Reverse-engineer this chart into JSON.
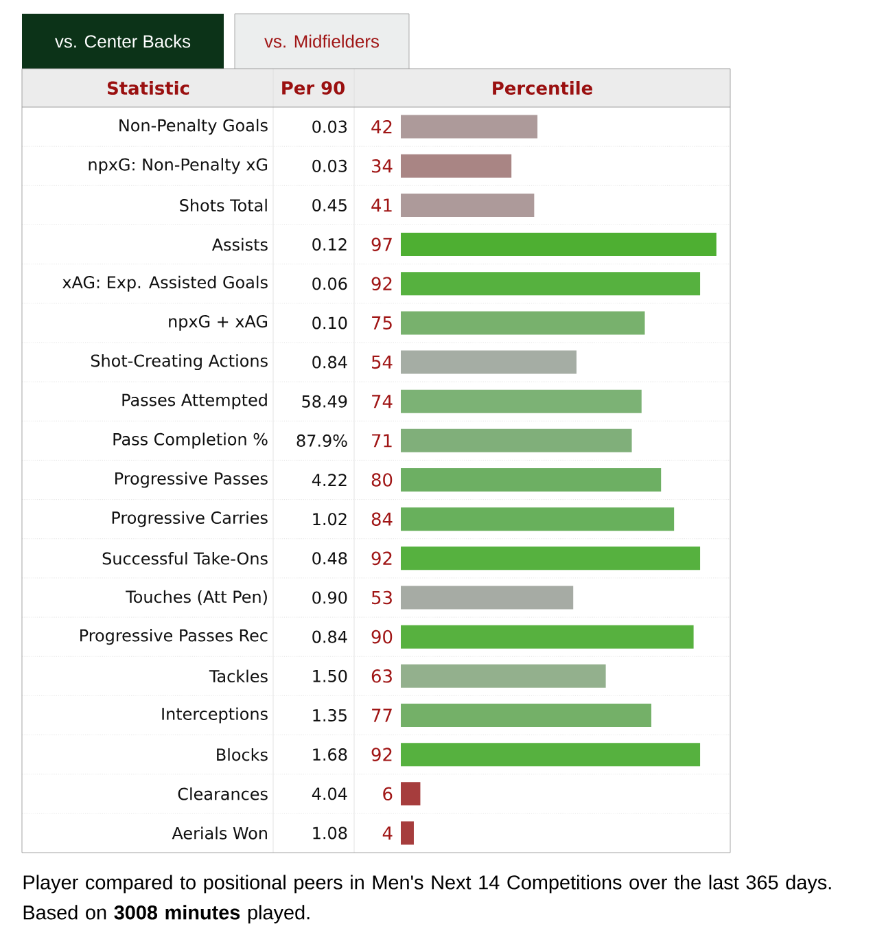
{
  "chart_data": {
    "type": "bar",
    "orientation": "horizontal",
    "ylabel": "Statistic",
    "xlabel": "Percentile",
    "categories": [
      "Non-Penalty Goals",
      "npxG: Non-Penalty xG",
      "Shots Total",
      "Assists",
      "xAG: Exp. Assisted Goals",
      "npxG + xAG",
      "Shot-Creating Actions",
      "Passes Attempted",
      "Pass Completion %",
      "Progressive Passes",
      "Progressive Carries",
      "Successful Take-Ons",
      "Touches (Att Pen)",
      "Progressive Passes Rec",
      "Tackles",
      "Interceptions",
      "Blocks",
      "Clearances",
      "Aerials Won"
    ],
    "values": [
      42,
      34,
      41,
      97,
      92,
      75,
      54,
      74,
      71,
      80,
      84,
      92,
      53,
      90,
      63,
      77,
      92,
      6,
      4
    ],
    "colors": [
      "#ad9a9a",
      "#a98584",
      "#ad9a9a",
      "#4eaf32",
      "#56b13f",
      "#78b16d",
      "#a5ada4",
      "#7cb275",
      "#80af7a",
      "#6daf63",
      "#68b05c",
      "#56b13f",
      "#a6aba4",
      "#57b13f",
      "#93b08d",
      "#74b068",
      "#56b13f",
      "#a63d3d",
      "#a63d3d"
    ],
    "xlim": [
      0,
      100
    ],
    "data_labels": true,
    "grid": "y",
    "annotations": [
      "vs. Center Backs",
      "vs. Midfielders",
      "Per 90",
      "Player compared to positional peers in Men's Next 14 Competitions over the last 365 days. Based on **3008 minutes** played.",
      "0.03",
      "0.03",
      "0.45",
      "0.12",
      "0.06",
      "0.10",
      "0.84",
      "58.49",
      "87.9%",
      "4.22",
      "1.02",
      "0.48",
      "0.90",
      "0.84",
      "1.50",
      "1.35",
      "1.68",
      "4.04",
      "1.08"
    ]
  }
}
